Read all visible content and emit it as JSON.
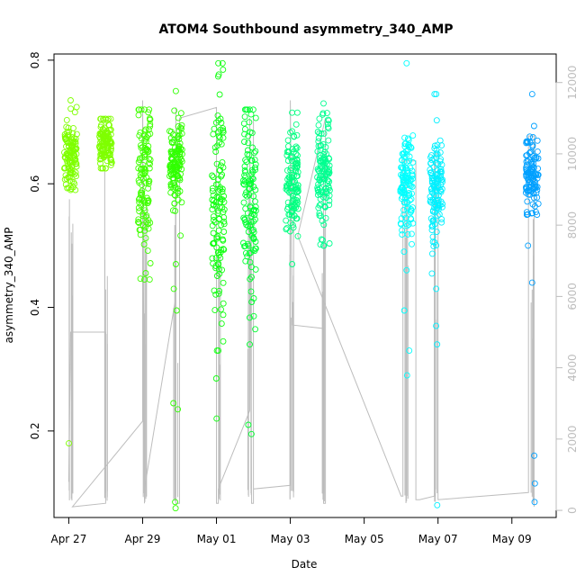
{
  "chart_data": {
    "type": "scatter",
    "title": "ATOM4 Southbound asymmetry_340_AMP",
    "xlabel": "Date",
    "ylabel": "asymmetry_340_AMP",
    "x_ticks": [
      "Apr 27",
      "Apr 29",
      "May 01",
      "May 03",
      "May 05",
      "May 07",
      "May 09"
    ],
    "x_tick_days": [
      0,
      2,
      4,
      6,
      8,
      10,
      12
    ],
    "xlim_days": [
      -0.4,
      13.2
    ],
    "y_ticks": [
      0.2,
      0.4,
      0.6,
      0.8
    ],
    "ylim": [
      0.06,
      0.81
    ],
    "y2_ticks": [
      0,
      2000,
      4000,
      6000,
      8000,
      10000,
      12000
    ],
    "y2lim": [
      -200,
      12800
    ],
    "grid": false,
    "clusters": [
      {
        "day": 0.05,
        "center": 0.645,
        "spread": 0.03,
        "min": 0.59,
        "max": 0.735,
        "color": "#7FFF00",
        "outliers": [
          0.18
        ]
      },
      {
        "day": 1.0,
        "center": 0.665,
        "spread": 0.02,
        "min": 0.625,
        "max": 0.705,
        "color": "#7FFF00",
        "outliers": []
      },
      {
        "day": 2.05,
        "center": 0.6,
        "spread": 0.06,
        "min": 0.445,
        "max": 0.72,
        "color": "#40FF00",
        "outliers": []
      },
      {
        "day": 2.9,
        "center": 0.63,
        "spread": 0.04,
        "min": 0.47,
        "max": 0.75,
        "color": "#30FF00",
        "outliers": [
          0.43,
          0.395,
          0.245,
          0.235,
          0.085,
          0.075
        ]
      },
      {
        "day": 4.05,
        "center": 0.56,
        "spread": 0.09,
        "min": 0.33,
        "max": 0.795,
        "color": "#10FF10",
        "outliers": [
          0.285,
          0.22
        ]
      },
      {
        "day": 4.9,
        "center": 0.55,
        "spread": 0.08,
        "min": 0.34,
        "max": 0.72,
        "color": "#00FF30",
        "outliers": [
          0.21,
          0.195
        ]
      },
      {
        "day": 6.05,
        "center": 0.6,
        "spread": 0.045,
        "min": 0.47,
        "max": 0.715,
        "color": "#00FF80",
        "outliers": []
      },
      {
        "day": 6.9,
        "center": 0.62,
        "spread": 0.04,
        "min": 0.5,
        "max": 0.73,
        "color": "#00FF90",
        "outliers": []
      },
      {
        "day": 9.15,
        "center": 0.6,
        "spread": 0.045,
        "min": 0.46,
        "max": 0.795,
        "color": "#00FFFF",
        "outliers": [
          0.395,
          0.33,
          0.29
        ]
      },
      {
        "day": 9.95,
        "center": 0.6,
        "spread": 0.045,
        "min": 0.43,
        "max": 0.745,
        "color": "#00F0FF",
        "outliers": [
          0.37,
          0.34,
          0.08
        ]
      },
      {
        "day": 12.55,
        "center": 0.61,
        "spread": 0.035,
        "min": 0.44,
        "max": 0.745,
        "color": "#00A0FF",
        "outliers": [
          0.16,
          0.115,
          0.085
        ]
      }
    ],
    "secondary_series": {
      "name": "",
      "color": "#bdbdbd",
      "points": [
        [
          0.0,
          800
        ],
        [
          0.05,
          5000
        ],
        [
          0.05,
          5000
        ],
        [
          1.0,
          5000
        ],
        [
          1.0,
          200
        ],
        [
          1.0,
          200
        ],
        [
          0.1,
          100
        ],
        [
          2.0,
          2500
        ],
        [
          2.0,
          11500
        ],
        [
          2.05,
          200
        ],
        [
          2.05,
          600
        ],
        [
          2.9,
          6000
        ],
        [
          2.9,
          11300
        ],
        [
          2.9,
          200
        ],
        [
          3.0,
          200
        ],
        [
          3.0,
          11000
        ],
        [
          4.0,
          11300
        ],
        [
          4.0,
          200
        ],
        [
          4.05,
          200
        ],
        [
          4.05,
          600
        ],
        [
          4.9,
          2800
        ],
        [
          4.9,
          11000
        ],
        [
          4.95,
          200
        ],
        [
          5.0,
          200
        ],
        [
          5.0,
          11000
        ],
        [
          5.0,
          600
        ],
        [
          6.0,
          700
        ],
        [
          6.0,
          11500
        ],
        [
          6.05,
          5200
        ],
        [
          6.9,
          5100
        ],
        [
          6.9,
          200
        ],
        [
          6.95,
          200
        ],
        [
          6.95,
          11000
        ],
        [
          6.2,
          7700
        ],
        [
          9.0,
          400
        ],
        [
          9.05,
          400
        ],
        [
          9.05,
          9800
        ],
        [
          9.4,
          9800
        ],
        [
          9.4,
          300
        ],
        [
          9.5,
          300
        ],
        [
          9.9,
          400
        ],
        [
          9.9,
          10000
        ],
        [
          10.0,
          10000
        ],
        [
          10.0,
          300
        ],
        [
          12.45,
          500
        ],
        [
          12.45,
          10500
        ],
        [
          12.6,
          10500
        ],
        [
          12.6,
          100
        ]
      ]
    }
  }
}
